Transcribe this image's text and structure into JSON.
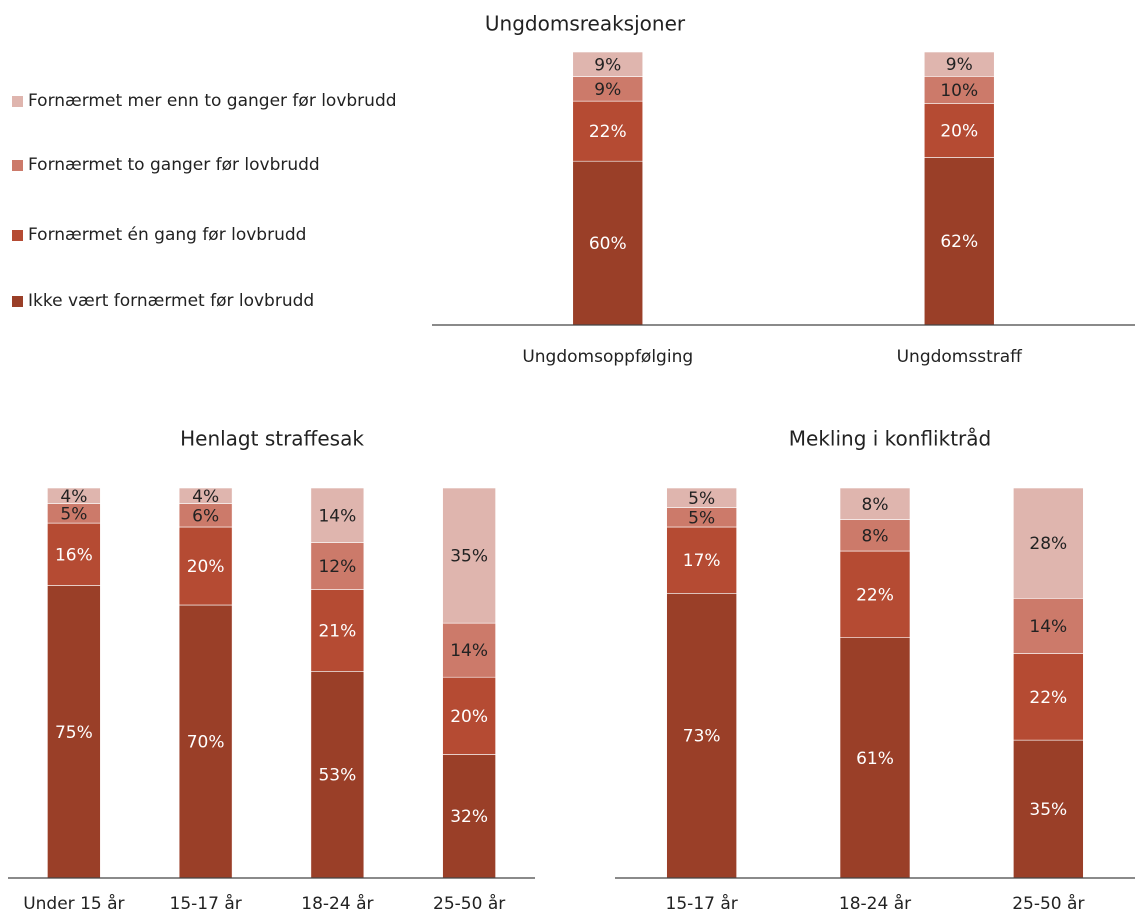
{
  "chart_data": [
    {
      "type": "bar",
      "stacked": true,
      "title": "Ungdomsreaksjoner",
      "categories": [
        "Ungdomsoppfølging",
        "Ungdomsstraff"
      ],
      "series": [
        {
          "name": "Ikke vært fornærmet før lovbrudd",
          "color": "#9a3f28",
          "values": [
            60,
            62
          ],
          "value_labels": [
            "60%",
            "62%"
          ]
        },
        {
          "name": "Fornærmet én gang før lovbrudd",
          "color": "#b54b33",
          "values": [
            22,
            20
          ],
          "value_labels": [
            "22%",
            "20%"
          ]
        },
        {
          "name": "Fornærmet to ganger før lovbrudd",
          "color": "#cc7a6a",
          "values": [
            9,
            10
          ],
          "value_labels": [
            "9%",
            "10%"
          ]
        },
        {
          "name": "Fornærmet mer enn to ganger før lovbrudd",
          "color": "#dfb5ae",
          "values": [
            9,
            9
          ],
          "value_labels": [
            "9%",
            "9%"
          ]
        }
      ]
    },
    {
      "type": "bar",
      "stacked": true,
      "title": "Henlagt straffesak",
      "categories": [
        "Under 15 år",
        "15-17 år",
        "18-24 år",
        "25-50 år"
      ],
      "series": [
        {
          "color": "#9a3f28",
          "values": [
            75,
            70,
            53,
            32
          ],
          "value_labels": [
            "75%",
            "70%",
            "53%",
            "32%"
          ]
        },
        {
          "color": "#b54b33",
          "values": [
            16,
            20,
            21,
            20
          ],
          "value_labels": [
            "16%",
            "20%",
            "21%",
            "20%"
          ]
        },
        {
          "color": "#cc7a6a",
          "values": [
            5,
            6,
            12,
            14
          ],
          "value_labels": [
            "5%",
            "6%",
            "12%",
            "14%"
          ]
        },
        {
          "color": "#dfb5ae",
          "values": [
            4,
            4,
            14,
            35
          ],
          "value_labels": [
            "4%",
            "4%",
            "14%",
            "35%"
          ]
        }
      ]
    },
    {
      "type": "bar",
      "stacked": true,
      "title": "Mekling i konfliktråd",
      "categories": [
        "15-17 år",
        "18-24 år",
        "25-50 år"
      ],
      "series": [
        {
          "color": "#9a3f28",
          "values": [
            73,
            61,
            35
          ],
          "value_labels": [
            "73%",
            "61%",
            "35%"
          ]
        },
        {
          "color": "#b54b33",
          "values": [
            17,
            22,
            22
          ],
          "value_labels": [
            "17%",
            "22%",
            "22%"
          ]
        },
        {
          "color": "#cc7a6a",
          "values": [
            5,
            8,
            14
          ],
          "value_labels": [
            "5%",
            "8%",
            "14%"
          ]
        },
        {
          "color": "#dfb5ae",
          "values": [
            5,
            8,
            28
          ],
          "value_labels": [
            "5%",
            "8%",
            "28%"
          ]
        }
      ]
    }
  ]
}
